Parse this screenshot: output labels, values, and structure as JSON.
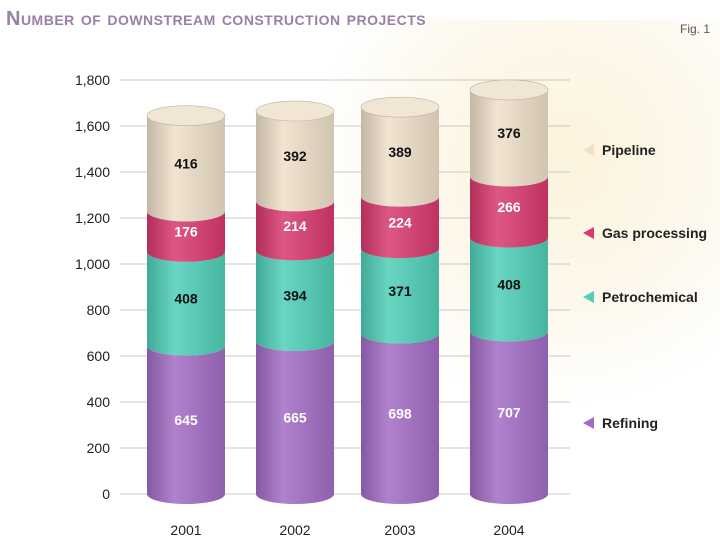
{
  "header": {
    "title": "Number of downstream construction projects",
    "fig_label": "Fig. 1"
  },
  "chart_data": {
    "type": "bar",
    "stacked": true,
    "title": "Number of downstream construction projects",
    "xlabel": "",
    "ylabel": "",
    "categories": [
      "2001",
      "2002",
      "2003",
      "2004"
    ],
    "ylim": [
      0,
      1800
    ],
    "yticks": [
      0,
      200,
      400,
      600,
      800,
      1000,
      1200,
      1400,
      1600,
      1800
    ],
    "ytick_labels": [
      "0",
      "200",
      "400",
      "600",
      "800",
      "1,000",
      "1,200",
      "1,400",
      "1,600",
      "1,800"
    ],
    "grid": true,
    "legend_position": "right",
    "series": [
      {
        "name": "Refining",
        "values": [
          645,
          665,
          698,
          707
        ],
        "color": "#a26cc4",
        "label_color": "#ffffff"
      },
      {
        "name": "Petrochemical",
        "values": [
          408,
          394,
          371,
          408
        ],
        "color": "#4fcfb7",
        "label_color": "#111111"
      },
      {
        "name": "Gas processing",
        "values": [
          176,
          214,
          224,
          266
        ],
        "color": "#d8396e",
        "label_color": "#ffffff"
      },
      {
        "name": "Pipeline",
        "values": [
          416,
          392,
          389,
          376
        ],
        "color": "#eedfc9",
        "label_color": "#111111"
      }
    ]
  }
}
